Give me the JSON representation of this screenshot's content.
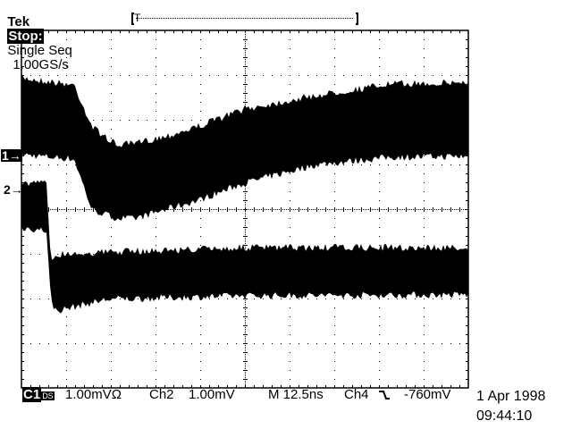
{
  "header": {
    "brand": "Tek",
    "state": "Stop:",
    "mode": "Single Seq",
    "sample_rate": "1.00GS/s",
    "record_bar": {
      "trigger_marker": "T",
      "trigger_position_fraction": 0.05
    }
  },
  "footer": {
    "ch1_badge": "C1",
    "ch1_coupling_icon": "dc-ohm-icon",
    "ch1_scale": "1.00mVΩ",
    "ch2_label": "Ch2",
    "ch2_scale": "1.00mV",
    "timebase": "M 12.5ns",
    "trigger_source": "Ch4",
    "trigger_slope_icon": "falling-edge-icon",
    "trigger_level": "-760mV",
    "date": "1 Apr 1998",
    "time": "09:44:10"
  },
  "chart_data": {
    "type": "area",
    "title": "",
    "grid": true,
    "x_divisions": 10,
    "y_divisions": 8,
    "x_units_per_div": "12.5 ns",
    "xlim": [
      0,
      125
    ],
    "series": [
      {
        "name": "1",
        "volts_per_div": "1.00mV",
        "ground_marker": "1→",
        "x_ns": [
          0,
          14.75,
          19.75,
          26.5,
          31.5,
          41.5,
          49,
          62.25,
          82.25,
          103,
          125
        ],
        "max_mV": [
          1.78,
          1.62,
          0.68,
          0.28,
          0.3,
          0.5,
          0.68,
          1.08,
          1.38,
          1.64,
          1.68
        ],
        "min_mV": [
          -0.02,
          -0.12,
          -1.26,
          -1.44,
          -1.46,
          -1.22,
          -1.06,
          -0.66,
          -0.25,
          -0.08,
          -0.06
        ]
      },
      {
        "name": "2",
        "volts_per_div": "1.00mV",
        "ground_marker": "2→",
        "x_ns": [
          0,
          7,
          8.25,
          9.75,
          24,
          62.5,
          125
        ],
        "max_mV": [
          0.18,
          0.18,
          -1.56,
          -1.4,
          -1.36,
          -1.26,
          -1.26
        ],
        "min_mV": [
          -0.9,
          -0.96,
          -2.56,
          -2.76,
          -2.5,
          -2.42,
          -2.4
        ]
      }
    ]
  }
}
